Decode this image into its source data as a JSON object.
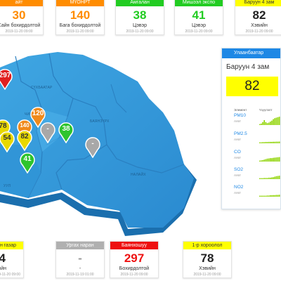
{
  "top_cards": [
    {
      "title": "айт",
      "value": "30",
      "level": "Сайн бохирдолтой",
      "time": "2019-11-20 09:00",
      "color": "#ff8c00"
    },
    {
      "title": "МҮОНРТ",
      "value": "140",
      "level": "Бага бохирдолтой",
      "time": "2019-11-20 09:00",
      "color": "#ff8c00"
    },
    {
      "title": "Амгалан",
      "value": "38",
      "level": "Цэвэр",
      "time": "2019-11-20 09:00",
      "color": "#22cc22"
    },
    {
      "title": "Мишээл экспо",
      "value": "41",
      "level": "Цэвэр",
      "time": "2019-11-20 09:00",
      "color": "#22cc22"
    },
    {
      "title": "Баруун 4 зам",
      "value": "82",
      "level": "Хэвийн",
      "time": "2019-11-20 09:00",
      "color": "#e6e600"
    }
  ],
  "bottom_cards": [
    {
      "title": "н газар",
      "value": "4",
      "level": "вйн",
      "time": "2019-11-20 09:00",
      "color": "#e6e600"
    },
    {
      "title": "Ургах наран",
      "value": "-",
      "level": "-",
      "time": "2019-11-19 01:00",
      "color": "#b0b0b0"
    },
    {
      "title": "Баянхошуу",
      "value": "297",
      "level": "Бохирдолтой",
      "time": "2019-11-20 09:00",
      "color": "#ee1111"
    },
    {
      "title": "1-р хороолол",
      "value": "78",
      "level": "Хэвийн",
      "time": "2019-11-20 09:00",
      "color": "#e6e600"
    }
  ],
  "map": {
    "labels": [
      "СҮХБААТАР",
      "ЧИН",
      "БАЯНЗҮРХ",
      "НАЛАЙХ",
      "УУЛ"
    ],
    "pins": [
      {
        "value": "297",
        "color": "#e02020"
      },
      {
        "value": "120",
        "color": "#f08a1c"
      },
      {
        "value": "78",
        "color": "#e8d800"
      },
      {
        "value": "140",
        "color": "#f08a1c"
      },
      {
        "value": "54",
        "color": "#e8d800"
      },
      {
        "value": "82",
        "color": "#e8d800"
      },
      {
        "value": "-",
        "color": "#a8a8a8"
      },
      {
        "value": "38",
        "color": "#2ec42e"
      },
      {
        "value": "-",
        "color": "#a8a8a8"
      },
      {
        "value": "41",
        "color": "#2ec42e"
      }
    ]
  },
  "panel": {
    "title": "Улаанбаатар",
    "station": "Баруун 4 зам",
    "value": "82",
    "value_color": "#ffff00",
    "col_element": "Элемент",
    "col_chart": "Үзүүлэлт",
    "rows": [
      {
        "name": "PM10",
        "unit": "АНИ",
        "levels": [
          0.1,
          0.15,
          0.3,
          0.5,
          0.3,
          0.2,
          0.25,
          0.35,
          0.45,
          0.6,
          0.7,
          0.75,
          0.8,
          0.85
        ],
        "color": "#8fd400"
      },
      {
        "name": "PM2.5",
        "unit": "АНИ",
        "levels": [
          0.1,
          0.1,
          0.12,
          0.12,
          0.14,
          0.14,
          0.15,
          0.15,
          0.15,
          0.16,
          0.16,
          0.17,
          0.17,
          0.18
        ],
        "color": "#8fd400"
      },
      {
        "name": "CO",
        "unit": "АНИ",
        "levels": [
          0.1,
          0.12,
          0.15,
          0.2,
          0.25,
          0.3,
          0.32,
          0.35,
          0.35,
          0.38,
          0.4,
          0.42,
          0.44,
          0.46
        ],
        "color": "#8fd400"
      },
      {
        "name": "SO2",
        "unit": "АНИ",
        "levels": [
          0.1,
          0.1,
          0.1,
          0.12,
          0.12,
          0.12,
          0.15,
          0.15,
          0.18,
          0.2,
          0.25,
          0.3,
          0.32,
          0.35
        ],
        "color": "#8fd400"
      },
      {
        "name": "NO2",
        "unit": "АНИ",
        "levels": [
          0.1,
          0.1,
          0.1,
          0.1,
          0.1,
          0.12,
          0.12,
          0.15,
          0.15,
          0.16,
          0.16,
          0.18,
          0.18,
          0.2
        ],
        "color": "#8fd400"
      }
    ]
  }
}
